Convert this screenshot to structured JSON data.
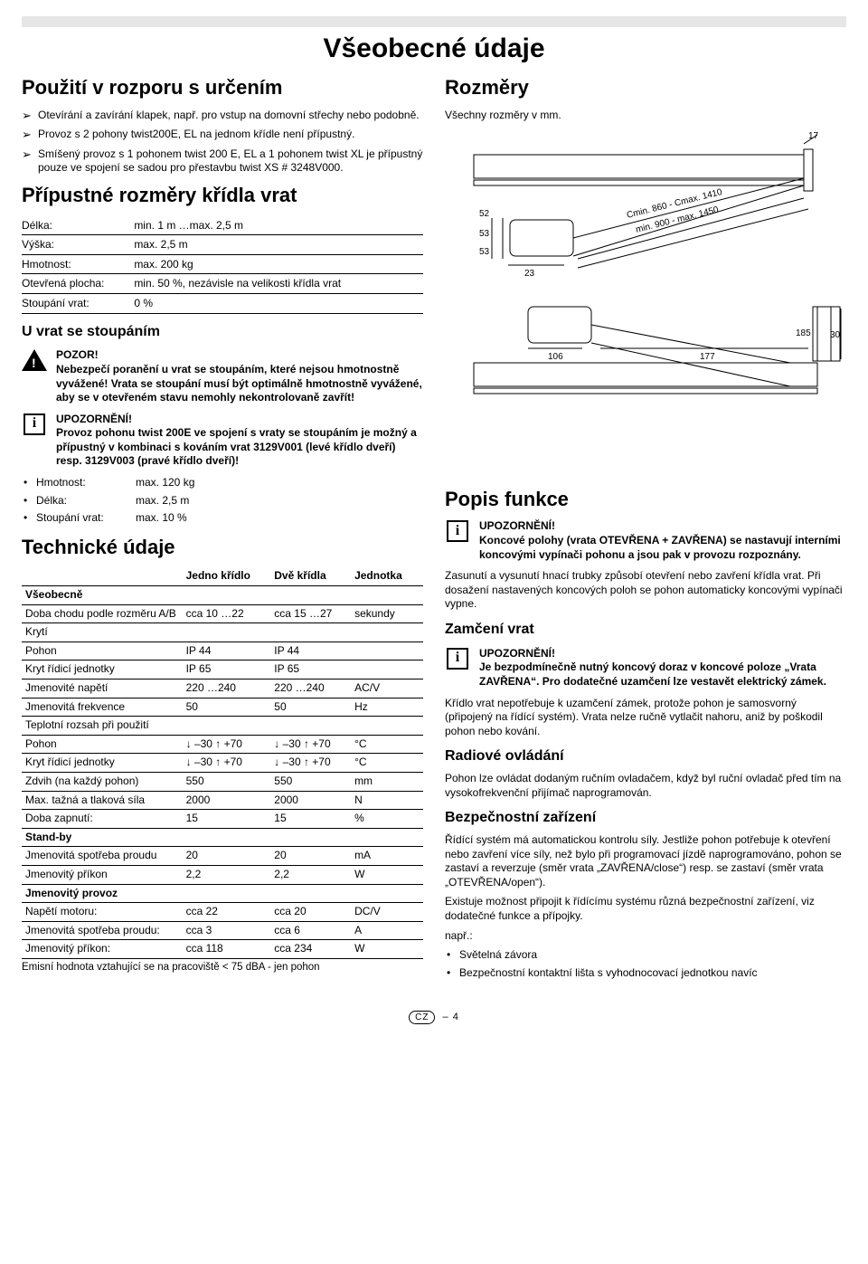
{
  "page": {
    "title": "Všeobecné údaje",
    "footer": {
      "code": "CZ",
      "page": "– 4"
    }
  },
  "left": {
    "misuse": {
      "heading": "Použití v rozporu s určením",
      "items": [
        "Otevírání a zavírání klapek, např. pro vstup na domovní střechy nebo podobně.",
        "Provoz s 2 pohony twist200E, EL na jednom křídle není přípustný.",
        "Smíšený provoz s 1 pohonem twist 200 E, EL a 1 pohonem twist XL je přípustný pouze ve spojení se sadou pro přestavbu twist XS # 3248V000."
      ]
    },
    "leafDims": {
      "heading": "Přípustné rozměry křídla vrat",
      "rows": [
        {
          "label": "Délka:",
          "value": "min. 1 m …max. 2,5 m"
        },
        {
          "label": "Výška:",
          "value": "max. 2,5 m"
        },
        {
          "label": "Hmotnost:",
          "value": "max. 200 kg"
        },
        {
          "label": "Otevřená plocha:",
          "value": "min. 50 %, nezávisle na velikosti křídla vrat"
        },
        {
          "label": "Stoupání vrat:",
          "value": "0 %"
        }
      ]
    },
    "incline": {
      "heading": "U vrat se stoupáním",
      "warn": {
        "title": "POZOR!",
        "body": "Nebezpečí poranění u vrat se stoupáním, které nejsou hmotnostně vyvážené!\nVrata se stoupání musí být optimálně hmotnostně vyvážené, aby se v otevřeném stavu nemohly nekontrolovaně zavřít!"
      },
      "info": {
        "title": "UPOZORNĚNÍ!",
        "body": "Provoz pohonu twist 200E ve spojení s vraty se stoupáním je možný a přípustný v kombinaci s kováním vrat 3129V001 (levé křídlo dveří) resp. 3129V003 (pravé křídlo dveří)!"
      },
      "specs": [
        {
          "label": "Hmotnost:",
          "value": "max. 120 kg"
        },
        {
          "label": "Délka:",
          "value": "max. 2,5 m"
        },
        {
          "label": "Stoupání vrat:",
          "value": "max. 10 %"
        }
      ]
    },
    "tech": {
      "heading": "Technické údaje",
      "headers": {
        "c1": "",
        "c2": "Jedno křídlo",
        "c3": "Dvě křídla",
        "c4": "Jednotka"
      },
      "sections": [
        {
          "title": "Všeobecně",
          "rows": [
            {
              "c1": "Doba chodu podle rozměru A/B",
              "c2": "cca 10 …22",
              "c3": "cca 15 …27",
              "c4": "sekundy"
            },
            {
              "c1": "Krytí",
              "c2": "",
              "c3": "",
              "c4": ""
            },
            {
              "c1": "Pohon",
              "c2": "IP 44",
              "c3": "IP 44",
              "c4": ""
            },
            {
              "c1": "Kryt řídicí jednotky",
              "c2": "IP 65",
              "c3": "IP 65",
              "c4": ""
            },
            {
              "c1": "Jmenovité napětí",
              "c2": "220 …240",
              "c3": "220 …240",
              "c4": "AC/V"
            },
            {
              "c1": "Jmenovitá frekvence",
              "c2": "50",
              "c3": "50",
              "c4": "Hz"
            },
            {
              "c1": "Teplotní rozsah při použití",
              "c2": "",
              "c3": "",
              "c4": ""
            },
            {
              "c1": "Pohon",
              "c2": "↓ –30 ↑ +70",
              "c3": "↓ –30 ↑ +70",
              "c4": "°C"
            },
            {
              "c1": "Kryt řídicí jednotky",
              "c2": "↓ –30 ↑ +70",
              "c3": "↓ –30 ↑ +70",
              "c4": "°C"
            },
            {
              "c1": "Zdvih (na každý pohon)",
              "c2": "550",
              "c3": "550",
              "c4": "mm"
            },
            {
              "c1": "Max. tažná a tlaková síla",
              "c2": "2000",
              "c3": "2000",
              "c4": "N"
            },
            {
              "c1": "Doba zapnutí:",
              "c2": "15",
              "c3": "15",
              "c4": "%"
            }
          ]
        },
        {
          "title": "Stand-by",
          "rows": [
            {
              "c1": "Jmenovitá spotřeba proudu",
              "c2": "20",
              "c3": "20",
              "c4": "mA"
            },
            {
              "c1": "Jmenovitý příkon",
              "c2": "2,2",
              "c3": "2,2",
              "c4": "W"
            }
          ]
        },
        {
          "title": "Jmenovitý provoz",
          "rows": [
            {
              "c1": "Napětí motoru:",
              "c2": "cca 22",
              "c3": "cca 20",
              "c4": "DC/V"
            },
            {
              "c1": "Jmenovitá spotřeba proudu:",
              "c2": "cca 3",
              "c3": "cca 6",
              "c4": "A"
            },
            {
              "c1": "Jmenovitý příkon:",
              "c2": "cca 118",
              "c3": "cca 234",
              "c4": "W"
            }
          ]
        }
      ],
      "footnote": "Emisní hodnota vztahující se na pracoviště < 75 dBA - jen pohon"
    }
  },
  "right": {
    "dims": {
      "heading": "Rozměry",
      "note": "Všechny rozměry v mm.",
      "diagram": {
        "labels": [
          "52",
          "53",
          "53",
          "23",
          "17",
          "106",
          "177",
          "185",
          "30"
        ],
        "ranges": [
          "Cmin. 860 - Cmax. 1410",
          "min. 900 - max. 1450"
        ],
        "stroke": "#000",
        "bg": "#ffffff"
      }
    },
    "func": {
      "heading": "Popis funkce",
      "info": {
        "title": "UPOZORNĚNÍ!",
        "body": "Koncové polohy (vrata OTEVŘENA + ZAVŘENA) se nastavují interními koncovými vypínači pohonu a jsou pak v provozu rozpoznány."
      },
      "para": "Zasunutí a vysunutí hnací trubky způsobí otevření nebo zavření křídla vrat. Při dosažení nastavených koncových poloh se pohon automaticky koncovými vypínači vypne."
    },
    "lock": {
      "heading": "Zamčení vrat",
      "info": {
        "title": "UPOZORNĚNÍ!",
        "body": "Je bezpodmínečně nutný koncový doraz v koncové poloze „Vrata ZAVŘENA“. Pro dodatečné uzamčení lze vestavět elektrický zámek."
      },
      "para": "Křídlo vrat nepotřebuje k uzamčení zámek, protože pohon je samosvorný (připojený na řídící systém). Vrata nelze ručně vytlačit nahoru, aniž by poškodil pohon nebo kování."
    },
    "radio": {
      "heading": "Radiové ovládání",
      "para": "Pohon lze ovládat dodaným ručním ovladačem, když byl ruční ovladač před tím na vysokofrekvenční přijímač naprogramován."
    },
    "safety": {
      "heading": "Bezpečnostní zařízení",
      "p1": "Řídící systém má automatickou kontrolu síly. Jestliže pohon potřebuje k otevření nebo zavření více síly, než bylo při programovací jízdě naprogramováno, pohon se zastaví a reverzuje (směr vrata „ZAVŘENA/close“) resp. se zastaví (směr vrata „OTEVŘENA/open“).",
      "p2": "Existuje možnost připojit k řídícímu systému různá bezpečnostní zařízení, viz dodatečné funkce a přípojky.",
      "p3": "např.:",
      "items": [
        "Světelná závora",
        "Bezpečnostní kontaktní lišta s vyhodnocovací jednotkou navíc"
      ]
    }
  }
}
